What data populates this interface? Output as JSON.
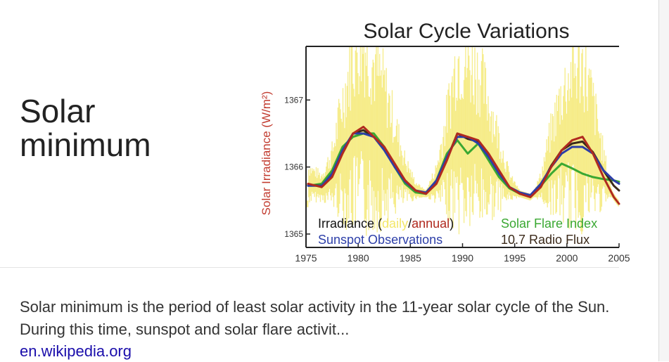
{
  "result": {
    "title": "Solar minimum",
    "snippet": "Solar minimum is the period of least solar activity in the 11-year solar cycle of the Sun. During this time, sunspot and solar flare activit...",
    "source": "en.wikipedia.org"
  },
  "colors": {
    "irradiance_daily": "#f3e76a",
    "irradiance_annual": "#b02a1f",
    "sunspot": "#2c3ea8",
    "flare": "#3aa832",
    "radio": "#3b2a1a",
    "ylabel": "#c23b2f"
  },
  "chart_data": {
    "type": "line",
    "title": "Solar Cycle Variations",
    "xlabel": "",
    "ylabel": "Solar Irradiance (W/m²)",
    "xlim": [
      1975,
      2005
    ],
    "ylim": [
      1364.8,
      1367.8
    ],
    "x_ticks": [
      "1975",
      "1980",
      "1985",
      "1990",
      "1995",
      "2000",
      "2005"
    ],
    "y_ticks": [
      "1365",
      "1366",
      "1367"
    ],
    "legend": {
      "irradiance_prefix": "Irradiance (",
      "daily": "daily",
      "slash": "/",
      "annual": "annual",
      "irradiance_suffix": ")",
      "sunspot": "Sunspot Observations",
      "flare": "Solar Flare Index",
      "radio": "10.7 Radio Flux"
    },
    "series": [
      {
        "name": "Irradiance (annual)",
        "x": [
          1975.2,
          1976.5,
          1977.5,
          1978.5,
          1979.5,
          1980.5,
          1981.5,
          1982.5,
          1983.5,
          1984.5,
          1985.5,
          1986.5,
          1987.5,
          1988.5,
          1989.5,
          1990.5,
          1991.5,
          1992.5,
          1993.5,
          1994.5,
          1995.5,
          1996.5,
          1997.5,
          1998.5,
          1999.5,
          2000.5,
          2001.5,
          2002.5,
          2003.5,
          2004.5,
          2005.0
        ],
        "values": [
          1365.75,
          1365.7,
          1365.85,
          1366.2,
          1366.5,
          1366.6,
          1366.45,
          1366.3,
          1366.05,
          1365.8,
          1365.65,
          1365.6,
          1365.75,
          1366.1,
          1366.5,
          1366.45,
          1366.4,
          1366.2,
          1365.95,
          1365.7,
          1365.6,
          1365.55,
          1365.7,
          1366.0,
          1366.25,
          1366.4,
          1366.45,
          1366.2,
          1365.85,
          1365.55,
          1365.45
        ]
      },
      {
        "name": "Sunspot Observations",
        "x": [
          1975.2,
          1976.5,
          1977.5,
          1978.5,
          1979.5,
          1980.5,
          1981.5,
          1982.5,
          1983.5,
          1984.5,
          1985.5,
          1986.5,
          1987.5,
          1988.5,
          1989.5,
          1990.5,
          1991.5,
          1992.5,
          1993.5,
          1994.5,
          1995.5,
          1996.5,
          1997.5,
          1998.5,
          1999.5,
          2000.5,
          2001.5,
          2002.5,
          2003.5,
          2004.5,
          2005.0
        ],
        "values": [
          1365.72,
          1365.72,
          1365.9,
          1366.25,
          1366.5,
          1366.5,
          1366.45,
          1366.25,
          1366.0,
          1365.78,
          1365.65,
          1365.62,
          1365.8,
          1366.15,
          1366.45,
          1366.45,
          1366.35,
          1366.15,
          1365.9,
          1365.7,
          1365.62,
          1365.58,
          1365.75,
          1366.0,
          1366.2,
          1366.3,
          1366.3,
          1366.2,
          1365.95,
          1365.8,
          1365.75
        ]
      },
      {
        "name": "Solar Flare Index",
        "x": [
          1975.2,
          1976.5,
          1977.5,
          1978.5,
          1979.5,
          1980.5,
          1981.5,
          1982.5,
          1983.5,
          1984.5,
          1985.5,
          1986.5,
          1987.5,
          1988.5,
          1989.5,
          1990.5,
          1991.5,
          1992.5,
          1993.5,
          1994.5,
          1995.5,
          1996.5,
          1997.5,
          1998.5,
          1999.5,
          2000.5,
          2001.5,
          2002.5,
          2003.5,
          2004.5,
          2005.0
        ],
        "values": [
          1365.72,
          1365.75,
          1365.95,
          1366.3,
          1366.45,
          1366.5,
          1366.5,
          1366.3,
          1366.0,
          1365.75,
          1365.62,
          1365.6,
          1365.8,
          1366.2,
          1366.4,
          1366.2,
          1366.35,
          1366.1,
          1365.85,
          1365.68,
          1365.6,
          1365.58,
          1365.72,
          1365.9,
          1366.05,
          1365.98,
          1365.9,
          1365.85,
          1365.82,
          1365.8,
          1365.78
        ]
      },
      {
        "name": "10.7 Radio Flux",
        "x": [
          1975.2,
          1976.5,
          1977.5,
          1978.5,
          1979.5,
          1980.5,
          1981.5,
          1982.5,
          1983.5,
          1984.5,
          1985.5,
          1986.5,
          1987.5,
          1988.5,
          1989.5,
          1990.5,
          1991.5,
          1992.5,
          1993.5,
          1994.5,
          1995.5,
          1996.5,
          1997.5,
          1998.5,
          1999.5,
          2000.5,
          2001.5,
          2002.5,
          2003.5,
          2004.5,
          2005.0
        ],
        "values": [
          1365.73,
          1365.72,
          1365.88,
          1366.22,
          1366.5,
          1366.55,
          1366.45,
          1366.28,
          1366.02,
          1365.8,
          1365.65,
          1365.6,
          1365.78,
          1366.12,
          1366.5,
          1366.42,
          1366.38,
          1366.18,
          1365.92,
          1365.7,
          1365.6,
          1365.56,
          1365.72,
          1366.02,
          1366.25,
          1366.35,
          1366.38,
          1366.22,
          1365.95,
          1365.72,
          1365.65
        ]
      }
    ]
  }
}
